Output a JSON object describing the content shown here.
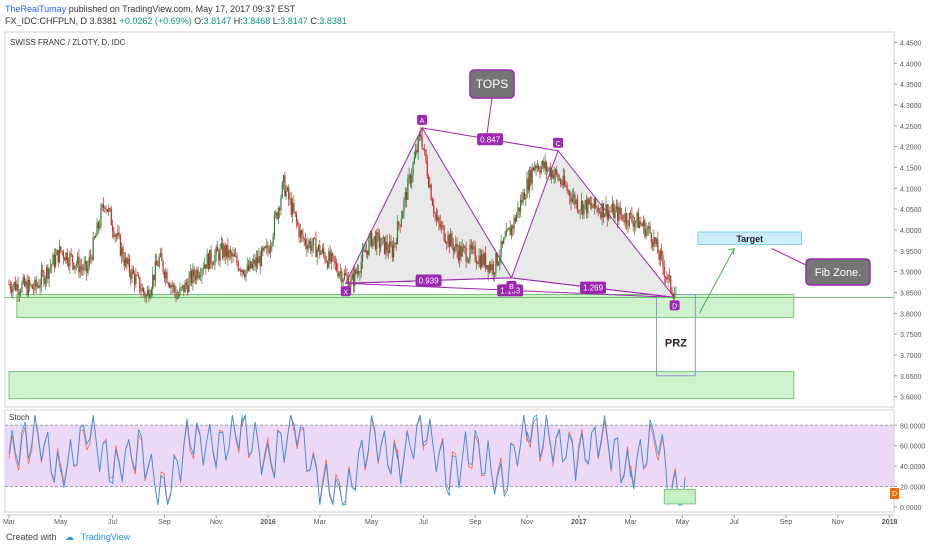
{
  "header": {
    "publisher": "TheRealTumay",
    "published_text": "published on TradingView.com, May 17, 2017 09:37 EST",
    "symbol": "FX_IDC:CHFPLN, D",
    "last": "3.8381",
    "change": "+0.0262 (+0.69%)",
    "open_label": "O:",
    "open": "3.8147",
    "high_label": "H:",
    "high": "3.8468",
    "low_label": "L:",
    "low": "3.8147",
    "close_label": "C:",
    "close": "3.8381"
  },
  "footer": {
    "created_with": "Created with",
    "brand": "TradingView"
  },
  "colors": {
    "pattern": "#9c27b0",
    "pattern_fill": "#e5e5e5",
    "zone_fill": "#c6f0c2",
    "zone_stroke": "#7cc47c",
    "target_fill": "#cdeef9",
    "callout_fill": "#757575",
    "callout_stroke": "#9c27b0",
    "stoch_band": "#e6cff5",
    "stoch_k": "#2196f3",
    "stoch_d": "#ef6c4c",
    "candle_up": "#2e7d32",
    "candle_down": "#c62828"
  },
  "chart_data": {
    "type": "candlestick",
    "title": "SWISS FRANC / ZLOTY, D, IDC",
    "y_ticks": [
      "4.4500",
      "4.4000",
      "4.3500",
      "4.3000",
      "4.2500",
      "4.2000",
      "4.1500",
      "4.1000",
      "4.0500",
      "4.0000",
      "3.9500",
      "3.9000",
      "3.8500",
      "3.8000",
      "3.7500",
      "3.7000",
      "3.6500",
      "3.6000"
    ],
    "ylim": [
      3.575,
      4.475
    ],
    "x_ticks": [
      "Mar",
      "May",
      "Jul",
      "Sep",
      "Nov",
      "2016",
      "Mar",
      "May",
      "Jul",
      "Sep",
      "Nov",
      "2017",
      "Mar",
      "May",
      "Jul",
      "Sep",
      "Nov",
      "2018"
    ],
    "x_tick_months": [
      0,
      2,
      4,
      6,
      8,
      10,
      12,
      14,
      16,
      18,
      20,
      22,
      24,
      26,
      28,
      30,
      32,
      34
    ],
    "price_path": [
      [
        0,
        3.87
      ],
      [
        1,
        3.86
      ],
      [
        2,
        3.95
      ],
      [
        3,
        3.9
      ],
      [
        3.7,
        4.07
      ],
      [
        4.5,
        3.92
      ],
      [
        5.3,
        3.84
      ],
      [
        5.8,
        3.93
      ],
      [
        6.5,
        3.84
      ],
      [
        7.5,
        3.92
      ],
      [
        8.3,
        3.95
      ],
      [
        9.2,
        3.9
      ],
      [
        10.0,
        3.95
      ],
      [
        10.6,
        4.11
      ],
      [
        11.3,
        3.98
      ],
      [
        12.0,
        3.95
      ],
      [
        12.8,
        3.9
      ],
      [
        13.2,
        3.87
      ],
      [
        14.0,
        3.98
      ],
      [
        14.8,
        3.95
      ],
      [
        15.9,
        4.23
      ],
      [
        16.5,
        4.02
      ],
      [
        17.3,
        3.95
      ],
      [
        18.0,
        3.94
      ],
      [
        18.7,
        3.91
      ],
      [
        19.5,
        4.02
      ],
      [
        20.3,
        4.16
      ],
      [
        21.0,
        4.14
      ],
      [
        22.0,
        4.06
      ],
      [
        23.0,
        4.05
      ],
      [
        24.3,
        4.02
      ],
      [
        24.8,
        3.99
      ],
      [
        25.5,
        3.87
      ],
      [
        25.8,
        3.84
      ]
    ],
    "harmonic": {
      "points": [
        {
          "label": "X",
          "month": 13.0,
          "price": 3.872
        },
        {
          "label": "A",
          "month": 15.95,
          "price": 4.245
        },
        {
          "label": "B",
          "month": 19.4,
          "price": 3.885
        },
        {
          "label": "C",
          "month": 21.2,
          "price": 4.19
        },
        {
          "label": "D",
          "month": 25.7,
          "price": 3.838
        }
      ],
      "ratios": [
        {
          "value": "0.847",
          "from": "A",
          "to": "C"
        },
        {
          "value": "0.939",
          "from": "X",
          "to": "B"
        },
        {
          "value": "1.153",
          "from": "X",
          "to": "D"
        },
        {
          "value": "1.269",
          "from": "B",
          "to": "D"
        }
      ]
    },
    "zones": [
      {
        "month_from": 0.3,
        "month_to": 30.3,
        "price_from": 3.79,
        "price_to": 3.845
      },
      {
        "month_from": 0,
        "month_to": 30.3,
        "price_from": 3.595,
        "price_to": 3.66
      }
    ],
    "prz_box": {
      "month_from": 25.0,
      "month_to": 26.5,
      "price_from": 3.65,
      "price_to": 3.845
    },
    "target_box": {
      "month_from": 26.6,
      "month_to": 30.6,
      "price_from": 3.965,
      "price_to": 3.995
    },
    "horizontal_line": 3.8381,
    "annotations": {
      "tops": "TOPS",
      "prz": "PRZ",
      "target": "Target",
      "fib_zone": "Fib Zone."
    },
    "last_price_marker": 3.8381,
    "stoch": {
      "label": "Stoch",
      "y_ticks": [
        "80.0000",
        "60.0000",
        "40.0000",
        "20.0000",
        "0.0000"
      ],
      "ylim": [
        -5,
        95
      ],
      "band": [
        20,
        80
      ],
      "last_marker": "D",
      "k_path": [
        [
          0,
          50
        ],
        [
          1,
          75
        ],
        [
          2,
          30
        ],
        [
          3,
          78
        ],
        [
          4,
          35
        ],
        [
          5,
          60
        ],
        [
          6,
          10
        ],
        [
          7,
          70
        ],
        [
          8,
          55
        ],
        [
          9,
          80
        ],
        [
          10,
          40
        ],
        [
          11,
          85
        ],
        [
          12,
          20
        ],
        [
          13,
          10
        ],
        [
          14,
          75
        ],
        [
          15,
          40
        ],
        [
          16,
          82
        ],
        [
          17,
          30
        ],
        [
          18,
          60
        ],
        [
          19,
          20
        ],
        [
          20,
          80
        ],
        [
          21,
          65
        ],
        [
          22,
          50
        ],
        [
          23,
          70
        ],
        [
          24,
          30
        ],
        [
          25,
          75
        ],
        [
          25.6,
          10
        ],
        [
          26.1,
          10
        ]
      ],
      "d_path": [
        [
          0,
          45
        ],
        [
          1,
          70
        ],
        [
          2,
          35
        ],
        [
          3,
          72
        ],
        [
          4,
          40
        ],
        [
          5,
          55
        ],
        [
          6,
          15
        ],
        [
          7,
          65
        ],
        [
          8,
          58
        ],
        [
          9,
          75
        ],
        [
          10,
          45
        ],
        [
          11,
          80
        ],
        [
          12,
          25
        ],
        [
          13,
          14
        ],
        [
          14,
          70
        ],
        [
          15,
          45
        ],
        [
          16,
          78
        ],
        [
          17,
          35
        ],
        [
          18,
          55
        ],
        [
          19,
          25
        ],
        [
          20,
          75
        ],
        [
          21,
          62
        ],
        [
          22,
          55
        ],
        [
          23,
          65
        ],
        [
          24,
          35
        ],
        [
          25,
          68
        ],
        [
          25.6,
          14
        ],
        [
          26.1,
          12
        ]
      ],
      "zone": {
        "month_from": 25.3,
        "month_to": 26.5,
        "value_from": 3,
        "value_to": 17
      }
    }
  }
}
